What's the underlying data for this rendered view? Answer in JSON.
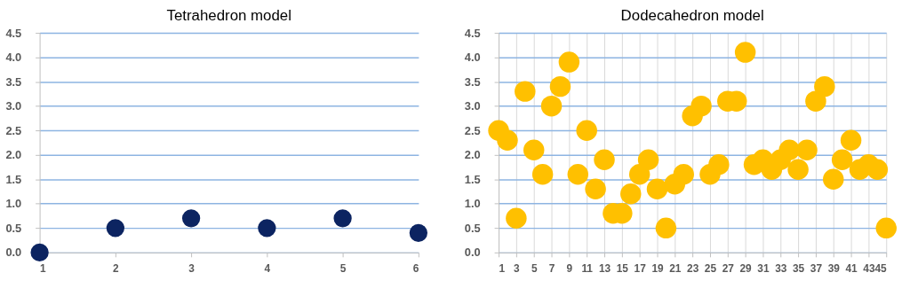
{
  "chart_data": [
    {
      "type": "scatter",
      "title": "Tetrahedron model",
      "x": [
        1,
        2,
        3,
        4,
        5,
        6
      ],
      "xlim": [
        1,
        6
      ],
      "xticks": [
        1,
        2,
        3,
        4,
        5,
        6
      ],
      "series": [
        {
          "color": "#0c2461",
          "values": [
            0,
            0.5,
            0.7,
            0.5,
            0.7,
            0.4
          ]
        }
      ],
      "ylim": [
        0,
        4.5
      ],
      "yticks": [
        {
          "value": 0,
          "label": "0.0"
        },
        {
          "value": 0.5,
          "label": "0.5"
        },
        {
          "value": 1,
          "label": "1.0"
        },
        {
          "value": 1.5,
          "label": "1.5"
        },
        {
          "value": 2,
          "label": "2.0"
        },
        {
          "value": 2.5,
          "label": "2.5"
        },
        {
          "value": 3,
          "label": "3.0"
        },
        {
          "value": 3.5,
          "label": "3.5"
        },
        {
          "value": 4,
          "label": "4.0"
        },
        {
          "value": 4.5,
          "label": "4.5"
        }
      ],
      "grid": "y",
      "marker": "circle"
    },
    {
      "type": "scatter",
      "title": "Dodecahedron  model",
      "x": [
        1,
        2,
        3,
        4,
        5,
        6,
        7,
        8,
        9,
        10,
        11,
        12,
        13,
        14,
        15,
        16,
        17,
        18,
        19,
        20,
        21,
        22,
        23,
        24,
        25,
        26,
        27,
        28,
        29,
        30,
        31,
        32,
        33,
        34,
        35,
        36,
        37,
        38,
        39,
        40,
        41,
        42,
        43,
        44,
        45
      ],
      "xlim": [
        1,
        45
      ],
      "xticks": [
        1,
        3,
        5,
        7,
        9,
        11,
        13,
        15,
        17,
        19,
        21,
        23,
        25,
        27,
        29,
        31,
        33,
        35,
        37,
        39,
        41,
        43,
        45
      ],
      "series": [
        {
          "color": "#ffc000",
          "values": [
            2.5,
            2.3,
            0.7,
            3.3,
            2.1,
            1.6,
            3.0,
            3.4,
            3.9,
            1.6,
            2.5,
            1.3,
            1.9,
            0.8,
            0.8,
            1.2,
            1.6,
            1.9,
            1.3,
            0.5,
            1.4,
            1.6,
            2.8,
            3.0,
            1.6,
            1.8,
            3.1,
            3.1,
            4.1,
            1.8,
            1.9,
            1.7,
            1.9,
            2.1,
            1.7,
            2.1,
            3.1,
            3.4,
            1.5,
            1.9,
            2.3,
            1.7,
            1.8,
            1.7,
            0.5
          ]
        }
      ],
      "ylim": [
        0,
        4.5
      ],
      "yticks": [
        {
          "value": 0,
          "label": "0.0"
        },
        {
          "value": 0.5,
          "label": "0.5"
        },
        {
          "value": 1,
          "label": "1.0"
        },
        {
          "value": 1.5,
          "label": "1.5"
        },
        {
          "value": 2,
          "label": "2.0"
        },
        {
          "value": 2.5,
          "label": "2.5"
        },
        {
          "value": 3,
          "label": "3.0"
        },
        {
          "value": 3.5,
          "label": "3.5"
        },
        {
          "value": 4,
          "label": "4.0"
        },
        {
          "value": 4.5,
          "label": "4.5"
        }
      ],
      "grid": true,
      "marker": "circle"
    }
  ]
}
